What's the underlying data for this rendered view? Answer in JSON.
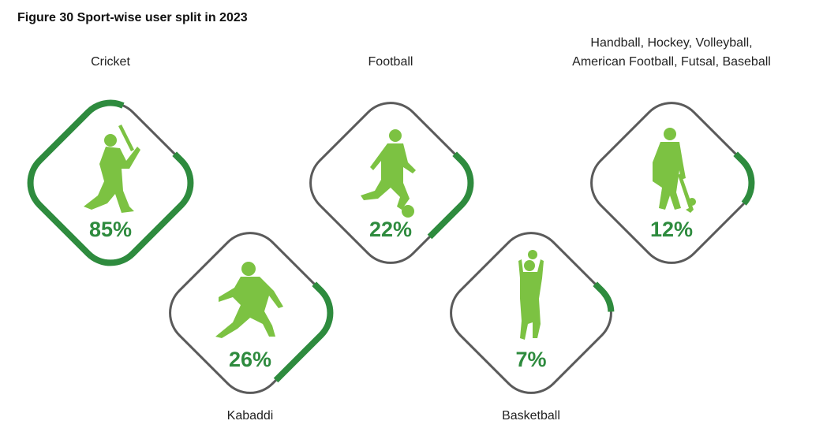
{
  "figure_title": "Figure 30 Sport-wise user split in 2023",
  "colors": {
    "ring": "#5a5a5a",
    "arc": "#2e8b3e",
    "icon": "#7cc242",
    "percent": "#2e8b3e"
  },
  "chart_data": {
    "type": "pie",
    "title": "Figure 30 Sport-wise user split in 2023",
    "unit": "%",
    "items": [
      {
        "label": "Cricket",
        "value": 85,
        "value_label": "85%",
        "icon": "cricket-batsman-icon",
        "label_lines": [
          "Cricket"
        ],
        "label_position": "top"
      },
      {
        "label": "Kabaddi",
        "value": 26,
        "value_label": "26%",
        "icon": "kabaddi-player-icon",
        "label_lines": [
          "Kabaddi"
        ],
        "label_position": "bottom"
      },
      {
        "label": "Football",
        "value": 22,
        "value_label": "22%",
        "icon": "football-player-icon",
        "label_lines": [
          "Football"
        ],
        "label_position": "top"
      },
      {
        "label": "Basketball",
        "value": 7,
        "value_label": "7%",
        "icon": "basketball-player-icon",
        "label_lines": [
          "Basketball"
        ],
        "label_position": "bottom"
      },
      {
        "label": "Handball, Hockey, Volleyball, American Football, Futsal, Baseball",
        "value": 12,
        "value_label": "12%",
        "icon": "hockey-player-icon",
        "label_lines": [
          "Handball, Hockey, Volleyball,",
          "American Football, Futsal, Baseball"
        ],
        "label_position": "top"
      }
    ]
  }
}
